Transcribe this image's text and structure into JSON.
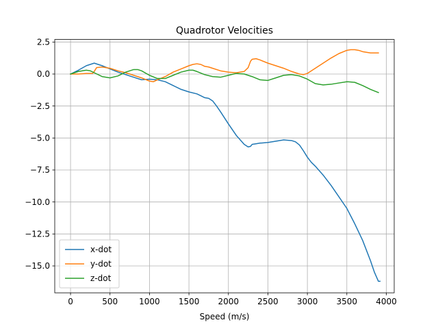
{
  "chart_data": {
    "type": "line",
    "title": "Quadrotor Velocities",
    "xlabel": "Speed (m/s)",
    "ylabel": "",
    "xlim": [
      -200,
      4100
    ],
    "ylim": [
      -17.1,
      2.7
    ],
    "xticks": [
      0,
      500,
      1000,
      1500,
      2000,
      2500,
      3000,
      3500,
      4000
    ],
    "yticks": [
      2.5,
      0.0,
      -2.5,
      -5.0,
      -7.5,
      -10.0,
      -12.5,
      -15.0
    ],
    "xtick_labels": [
      "0",
      "500",
      "1000",
      "1500",
      "2000",
      "2500",
      "3000",
      "3500",
      "4000"
    ],
    "ytick_labels": [
      "2.5",
      "0.0",
      "−2.5",
      "−5.0",
      "−7.5",
      "−10.0",
      "−12.5",
      "−15.0"
    ],
    "grid": true,
    "legend_position": "lower-left",
    "series": [
      {
        "name": "x-dot",
        "color": "#1f77b4",
        "x": [
          0,
          100,
          200,
          300,
          350,
          400,
          500,
          600,
          700,
          800,
          900,
          1000,
          1100,
          1200,
          1300,
          1400,
          1500,
          1600,
          1650,
          1700,
          1750,
          1800,
          1850,
          1900,
          2000,
          2100,
          2200,
          2250,
          2280,
          2300,
          2350,
          2400,
          2500,
          2600,
          2700,
          2800,
          2850,
          2900,
          2950,
          3000,
          3050,
          3100,
          3200,
          3300,
          3400,
          3500,
          3600,
          3700,
          3800,
          3850,
          3900,
          3920
        ],
        "y": [
          0,
          0.3,
          0.65,
          0.85,
          0.75,
          0.65,
          0.4,
          0.15,
          -0.05,
          -0.25,
          -0.45,
          -0.4,
          -0.45,
          -0.6,
          -0.9,
          -1.2,
          -1.4,
          -1.55,
          -1.7,
          -1.85,
          -1.9,
          -2.1,
          -2.5,
          -2.95,
          -3.9,
          -4.8,
          -5.5,
          -5.7,
          -5.65,
          -5.5,
          -5.45,
          -5.4,
          -5.35,
          -5.25,
          -5.15,
          -5.2,
          -5.3,
          -5.55,
          -6.0,
          -6.5,
          -6.9,
          -7.2,
          -7.9,
          -8.7,
          -9.6,
          -10.5,
          -11.7,
          -13.0,
          -14.6,
          -15.5,
          -16.2,
          -16.2
        ]
      },
      {
        "name": "y-dot",
        "color": "#ff7f0e",
        "x": [
          0,
          100,
          200,
          280,
          300,
          330,
          400,
          500,
          600,
          700,
          800,
          900,
          1000,
          1050,
          1100,
          1200,
          1300,
          1400,
          1500,
          1550,
          1600,
          1650,
          1700,
          1750,
          1800,
          1900,
          2000,
          2100,
          2200,
          2250,
          2280,
          2300,
          2350,
          2400,
          2500,
          2600,
          2700,
          2800,
          2900,
          2950,
          3000,
          3100,
          3200,
          3300,
          3400,
          3500,
          3550,
          3600,
          3650,
          3700,
          3800,
          3900
        ],
        "y": [
          0,
          0.0,
          0.05,
          0.05,
          0.2,
          0.5,
          0.55,
          0.45,
          0.25,
          0.1,
          -0.1,
          -0.3,
          -0.55,
          -0.6,
          -0.45,
          -0.2,
          0.15,
          0.4,
          0.65,
          0.75,
          0.8,
          0.75,
          0.6,
          0.55,
          0.45,
          0.25,
          0.15,
          0.1,
          0.2,
          0.5,
          1.0,
          1.15,
          1.2,
          1.1,
          0.85,
          0.65,
          0.45,
          0.2,
          0.0,
          -0.05,
          0.05,
          0.45,
          0.85,
          1.25,
          1.6,
          1.85,
          1.9,
          1.9,
          1.85,
          1.75,
          1.65,
          1.65
        ]
      },
      {
        "name": "z-dot",
        "color": "#2ca02c",
        "x": [
          0,
          100,
          200,
          250,
          300,
          400,
          500,
          600,
          700,
          800,
          850,
          900,
          1000,
          1100,
          1200,
          1300,
          1400,
          1500,
          1550,
          1600,
          1700,
          1800,
          1900,
          2000,
          2100,
          2200,
          2300,
          2400,
          2500,
          2600,
          2700,
          2800,
          2900,
          3000,
          3100,
          3200,
          3300,
          3400,
          3500,
          3600,
          3700,
          3800,
          3900
        ],
        "y": [
          0,
          0.2,
          0.3,
          0.25,
          0.1,
          -0.2,
          -0.3,
          -0.15,
          0.15,
          0.35,
          0.35,
          0.25,
          -0.1,
          -0.35,
          -0.35,
          -0.1,
          0.15,
          0.3,
          0.3,
          0.2,
          -0.05,
          -0.2,
          -0.25,
          -0.1,
          0.05,
          0.0,
          -0.2,
          -0.45,
          -0.5,
          -0.3,
          -0.1,
          -0.05,
          -0.15,
          -0.4,
          -0.75,
          -0.85,
          -0.8,
          -0.7,
          -0.6,
          -0.65,
          -0.9,
          -1.2,
          -1.45
        ]
      }
    ]
  }
}
